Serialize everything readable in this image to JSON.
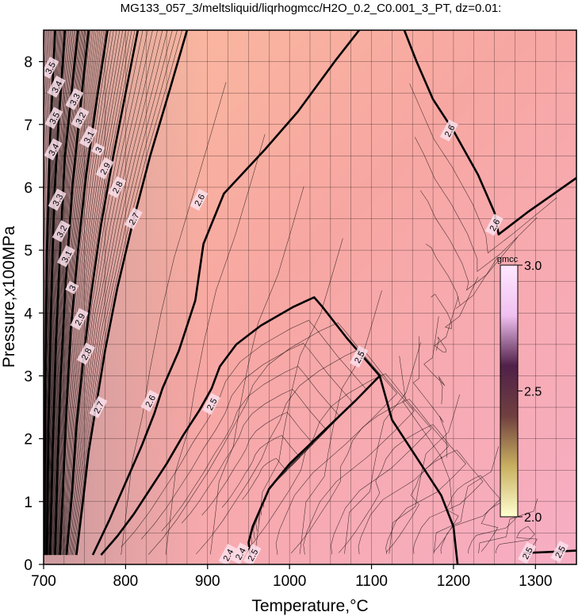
{
  "chart_data": {
    "type": "contour",
    "title": "MG133_057_3/meltsliquid/liqrhogmcc/H2O_0.2_C0.001_3_PT, dz=0.01:",
    "xlabel": "Temperature,°C",
    "ylabel": "Pressure,x100MPa",
    "xlim": [
      700,
      1350
    ],
    "ylim": [
      0,
      8.5
    ],
    "x_ticks": [
      700,
      800,
      900,
      1000,
      1100,
      1200,
      1300
    ],
    "y_ticks": [
      0,
      1,
      2,
      3,
      4,
      5,
      6,
      7,
      8
    ],
    "grid": true,
    "contour_interval": 0.01,
    "colorbar": {
      "unit": "gmcc",
      "range": [
        2.0,
        3.0
      ],
      "ticks": [
        "3.0",
        "2.5",
        "2.0"
      ],
      "colors": [
        "#ffffd0",
        "#c8b060",
        "#704040",
        "#502048",
        "#f0c0f0",
        "#ffe8ff"
      ]
    },
    "background_colors": [
      "#f7a7a2",
      "#fbbd9e",
      "#f7aec4",
      "#c89a9e"
    ],
    "major_contours": [
      {
        "level": "2.5",
        "points": [
          [
            952,
            0.15
          ],
          [
            950,
            0.35
          ],
          [
            955,
            0.6
          ],
          [
            965,
            0.9
          ],
          [
            975,
            1.2
          ],
          [
            1000,
            1.6
          ],
          [
            1040,
            2.1
          ],
          [
            1080,
            2.6
          ],
          [
            1110,
            3.0
          ],
          [
            1070,
            3.6
          ],
          [
            1040,
            4.1
          ],
          [
            1030,
            4.25
          ],
          [
            1005,
            4.1
          ],
          [
            965,
            3.8
          ],
          [
            935,
            3.5
          ],
          [
            915,
            3.15
          ],
          [
            905,
            2.8
          ],
          [
            890,
            2.45
          ],
          [
            870,
            2.05
          ],
          [
            850,
            1.6
          ],
          [
            830,
            1.2
          ],
          [
            810,
            0.8
          ],
          [
            790,
            0.45
          ],
          [
            770,
            0.15
          ]
        ]
      },
      {
        "level": "2.5",
        "points": [
          [
            1205,
            0
          ],
          [
            1200,
            0.6
          ],
          [
            1185,
            1.1
          ],
          [
            1165,
            1.5
          ],
          [
            1145,
            1.9
          ],
          [
            1125,
            2.3
          ],
          [
            1110,
            3.0
          ]
        ]
      },
      {
        "level": "2.5",
        "points": [
          [
            1285,
            0.18
          ],
          [
            1320,
            0.2
          ],
          [
            1350,
            0.22
          ]
        ]
      },
      {
        "level": "2.6",
        "points": [
          [
            760,
            0.15
          ],
          [
            780,
            0.7
          ],
          [
            800,
            1.3
          ],
          [
            820,
            1.9
          ],
          [
            835,
            2.4
          ],
          [
            845,
            2.8
          ],
          [
            865,
            3.4
          ],
          [
            885,
            4.2
          ],
          [
            895,
            5.1
          ],
          [
            920,
            5.9
          ],
          [
            970,
            6.6
          ],
          [
            1010,
            7.2
          ],
          [
            1055,
            8.0
          ],
          [
            1085,
            8.5
          ]
        ]
      },
      {
        "level": "2.6",
        "points": [
          [
            1140,
            8.5
          ],
          [
            1155,
            8.0
          ],
          [
            1175,
            7.4
          ],
          [
            1200,
            6.9
          ],
          [
            1230,
            6.2
          ],
          [
            1250,
            5.6
          ],
          [
            1255,
            5.25
          ],
          [
            1290,
            5.6
          ],
          [
            1350,
            6.15
          ]
        ]
      },
      {
        "level": "2.7",
        "points": [
          [
            740,
            0.15
          ],
          [
            748,
            1.0
          ],
          [
            755,
            1.8
          ],
          [
            765,
            2.6
          ],
          [
            775,
            3.4
          ],
          [
            790,
            4.4
          ],
          [
            808,
            5.4
          ],
          [
            830,
            6.5
          ],
          [
            855,
            7.6
          ],
          [
            875,
            8.5
          ]
        ]
      },
      {
        "level": "2.8",
        "points": [
          [
            728,
            0.15
          ],
          [
            735,
            1.2
          ],
          [
            740,
            2.2
          ],
          [
            748,
            3.2
          ],
          [
            758,
            4.3
          ],
          [
            770,
            5.4
          ],
          [
            785,
            6.5
          ],
          [
            800,
            7.5
          ],
          [
            815,
            8.5
          ]
        ]
      },
      {
        "level": "2.9",
        "points": [
          [
            720,
            0.15
          ],
          [
            724,
            1.3
          ],
          [
            728,
            2.5
          ],
          [
            733,
            3.7
          ],
          [
            742,
            5.0
          ],
          [
            752,
            6.2
          ],
          [
            765,
            7.4
          ],
          [
            778,
            8.5
          ]
        ]
      },
      {
        "level": "3",
        "points": [
          [
            714,
            0.15
          ],
          [
            717,
            1.6
          ],
          [
            721,
            3.0
          ],
          [
            727,
            4.5
          ],
          [
            735,
            6.0
          ],
          [
            745,
            7.3
          ],
          [
            755,
            8.5
          ]
        ]
      },
      {
        "level": "3.1",
        "points": [
          [
            708,
            0.15
          ],
          [
            711,
            1.8
          ],
          [
            715,
            3.5
          ],
          [
            720,
            5.0
          ],
          [
            726,
            6.5
          ],
          [
            734,
            7.5
          ],
          [
            742,
            8.5
          ]
        ]
      },
      {
        "level": "3.2",
        "points": [
          [
            704,
            0.15
          ],
          [
            706,
            2.2
          ],
          [
            709,
            4.0
          ],
          [
            713,
            5.8
          ],
          [
            718,
            7.0
          ],
          [
            726,
            8.5
          ]
        ]
      },
      {
        "level": "3.3",
        "points": [
          [
            701,
            0.15
          ],
          [
            702,
            3.0
          ],
          [
            704,
            5.0
          ],
          [
            708,
            6.8
          ],
          [
            714,
            8.5
          ]
        ]
      }
    ],
    "contour_labels": [
      {
        "text": "2.5",
        "x": 955,
        "y": 0.15
      },
      {
        "text": "2.4",
        "x": 925,
        "y": 0.15
      },
      {
        "text": "2.4",
        "x": 940,
        "y": 0.17
      },
      {
        "text": "2.5",
        "x": 1085,
        "y": 3.3
      },
      {
        "text": "2.5",
        "x": 905,
        "y": 2.55
      },
      {
        "text": "2.5",
        "x": 1290,
        "y": 0.18
      },
      {
        "text": "2.5",
        "x": 1330,
        "y": 0.2
      },
      {
        "text": "2.6",
        "x": 830,
        "y": 2.6
      },
      {
        "text": "2.6",
        "x": 890,
        "y": 5.8
      },
      {
        "text": "2.6",
        "x": 1195,
        "y": 6.9
      },
      {
        "text": "2.6",
        "x": 1250,
        "y": 5.4
      },
      {
        "text": "2.7",
        "x": 767,
        "y": 2.5
      },
      {
        "text": "2.7",
        "x": 810,
        "y": 5.5
      },
      {
        "text": "2.8",
        "x": 752,
        "y": 3.35
      },
      {
        "text": "2.8",
        "x": 790,
        "y": 6.0
      },
      {
        "text": "2.9",
        "x": 744,
        "y": 3.9
      },
      {
        "text": "2.9",
        "x": 775,
        "y": 6.3
      },
      {
        "text": "3",
        "x": 735,
        "y": 4.4
      },
      {
        "text": "3",
        "x": 767,
        "y": 6.6
      },
      {
        "text": "3.1",
        "x": 728,
        "y": 4.9
      },
      {
        "text": "3.1",
        "x": 755,
        "y": 6.8
      },
      {
        "text": "3.2",
        "x": 722,
        "y": 5.3
      },
      {
        "text": "3.2",
        "x": 745,
        "y": 7.1
      },
      {
        "text": "3.3",
        "x": 717,
        "y": 5.8
      },
      {
        "text": "3.3",
        "x": 738,
        "y": 7.4
      },
      {
        "text": "3.4",
        "x": 712,
        "y": 6.6
      },
      {
        "text": "3.4",
        "x": 716,
        "y": 7.6
      },
      {
        "text": "3.5",
        "x": 708,
        "y": 7.9
      },
      {
        "text": "3.5",
        "x": 713,
        "y": 7.1
      }
    ]
  }
}
